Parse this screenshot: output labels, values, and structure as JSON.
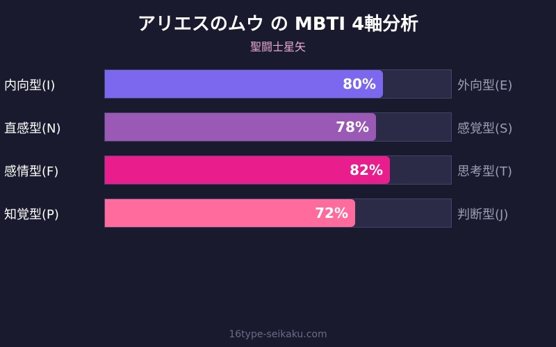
{
  "chart_data": {
    "type": "bar",
    "title": "アリエスのムウ の MBTI 4軸分析",
    "subtitle": "聖闘士星矢",
    "xlim": [
      0,
      100
    ],
    "rows": [
      {
        "left_label": "内向型(I)",
        "right_label": "外向型(E)",
        "value": 80,
        "value_label": "80%",
        "color": "#7b68ee"
      },
      {
        "left_label": "直感型(N)",
        "right_label": "感覚型(S)",
        "value": 78,
        "value_label": "78%",
        "color": "#9b59b6"
      },
      {
        "left_label": "感情型(F)",
        "right_label": "思考型(T)",
        "value": 82,
        "value_label": "82%",
        "color": "#e91e8c"
      },
      {
        "left_label": "知覚型(P)",
        "right_label": "判断型(J)",
        "value": 72,
        "value_label": "72%",
        "color": "#ff6b9d"
      }
    ]
  },
  "footer": "16type-seikaku.com",
  "colors": {
    "background": "#1a1a2e",
    "track": "#2b2b48",
    "subtitle": "#e8a9d3"
  }
}
